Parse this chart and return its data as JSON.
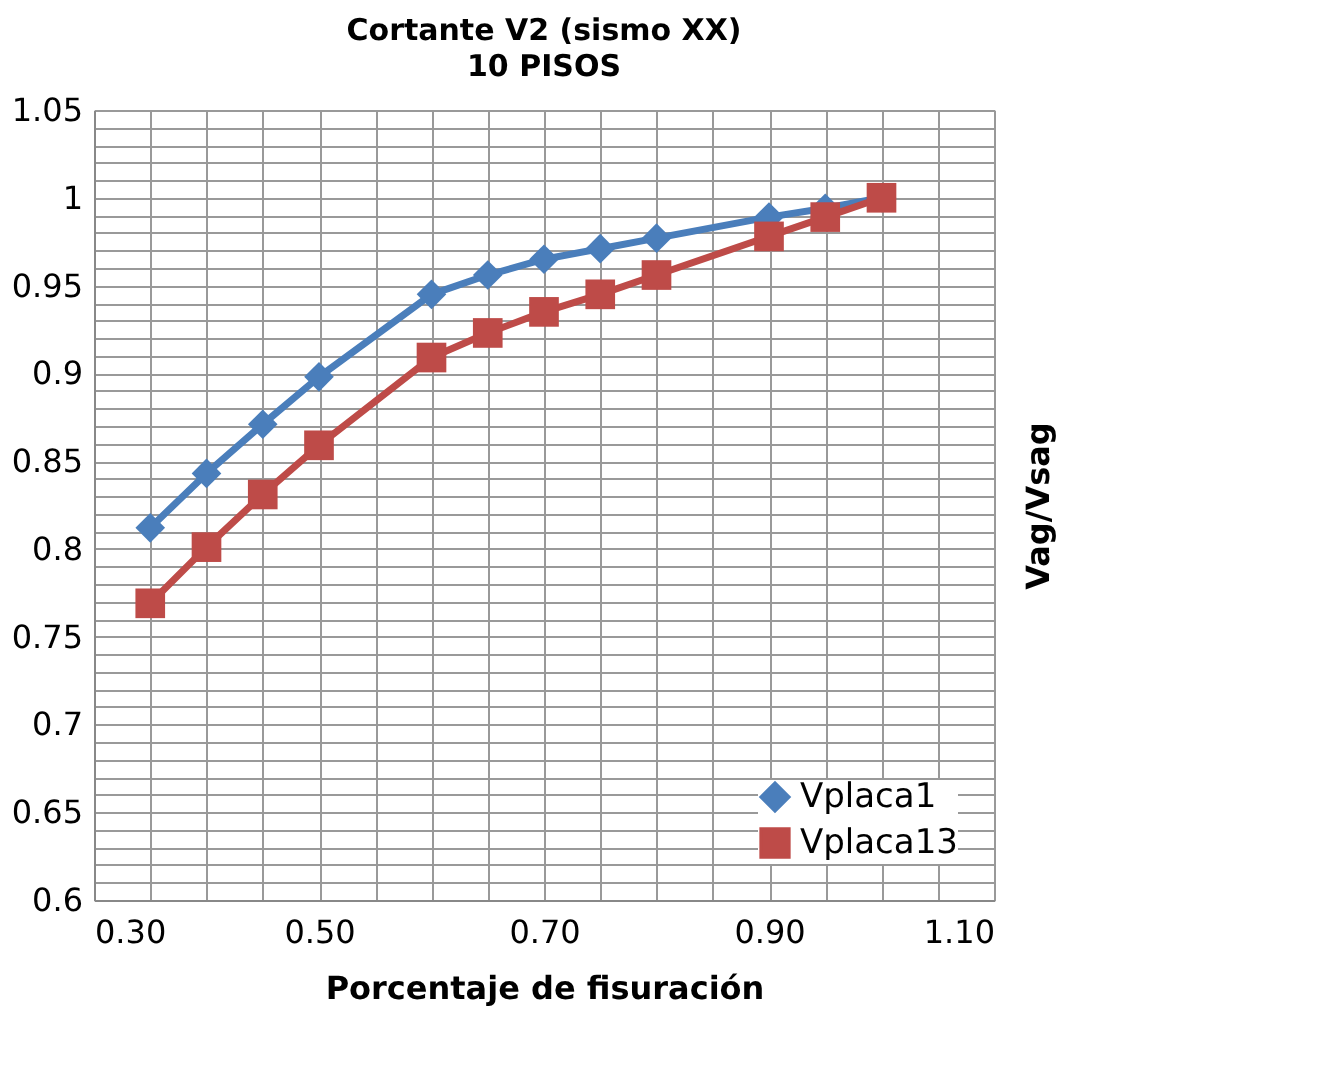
{
  "chart_data": {
    "type": "line",
    "title": "Cortante V2 (sismo XX)",
    "subtitle": "10 PISOS",
    "xlabel": "Porcentaje de fisuración",
    "ylabel": "Vag/Vsag",
    "x": [
      0.35,
      0.4,
      0.45,
      0.5,
      0.6,
      0.65,
      0.7,
      0.75,
      0.8,
      0.9,
      0.95,
      1.0
    ],
    "series": [
      {
        "name": "Vplaca1",
        "color": "#4a7ebb",
        "marker": "diamond",
        "values": [
          0.812,
          0.843,
          0.871,
          0.898,
          0.945,
          0.956,
          0.965,
          0.971,
          0.977,
          0.989,
          0.994,
          1.0
        ]
      },
      {
        "name": "Vplaca13",
        "color": "#be4b48",
        "marker": "square",
        "values": [
          0.769,
          0.801,
          0.831,
          0.859,
          0.909,
          0.923,
          0.935,
          0.945,
          0.956,
          0.978,
          0.989,
          1.0
        ]
      }
    ],
    "xlim": [
      0.3,
      1.1
    ],
    "xticks": [
      {
        "value": 0.3,
        "label": "0.30"
      },
      {
        "value": 0.35,
        "label": null
      },
      {
        "value": 0.4,
        "label": null
      },
      {
        "value": 0.45,
        "label": null
      },
      {
        "value": 0.5,
        "label": "0.50"
      },
      {
        "value": 0.55,
        "label": null
      },
      {
        "value": 0.6,
        "label": null
      },
      {
        "value": 0.65,
        "label": null
      },
      {
        "value": 0.7,
        "label": "0.70"
      },
      {
        "value": 0.75,
        "label": null
      },
      {
        "value": 0.8,
        "label": null
      },
      {
        "value": 0.85,
        "label": null
      },
      {
        "value": 0.9,
        "label": "0.90"
      },
      {
        "value": 0.95,
        "label": null
      },
      {
        "value": 1.0,
        "label": null
      },
      {
        "value": 1.05,
        "label": null
      },
      {
        "value": 1.1,
        "label": "1.10"
      }
    ],
    "ylim": [
      0.6,
      1.05
    ],
    "yticks": [
      0.6,
      {
        "value": 0.61,
        "label": null
      },
      {
        "value": 0.62,
        "label": null
      },
      {
        "value": 0.63,
        "label": null
      },
      {
        "value": 0.64,
        "label": null
      },
      0.65,
      {
        "value": 0.66,
        "label": null
      },
      {
        "value": 0.67,
        "label": null
      },
      {
        "value": 0.68,
        "label": null
      },
      {
        "value": 0.69,
        "label": null
      },
      0.7,
      {
        "value": 0.71,
        "label": null
      },
      {
        "value": 0.72,
        "label": null
      },
      {
        "value": 0.73,
        "label": null
      },
      {
        "value": 0.74,
        "label": null
      },
      0.75,
      {
        "value": 0.76,
        "label": null
      },
      {
        "value": 0.77,
        "label": null
      },
      {
        "value": 0.78,
        "label": null
      },
      {
        "value": 0.79,
        "label": null
      },
      0.8,
      {
        "value": 0.81,
        "label": null
      },
      {
        "value": 0.82,
        "label": null
      },
      {
        "value": 0.83,
        "label": null
      },
      {
        "value": 0.84,
        "label": null
      },
      0.85,
      {
        "value": 0.86,
        "label": null
      },
      {
        "value": 0.87,
        "label": null
      },
      {
        "value": 0.88,
        "label": null
      },
      {
        "value": 0.89,
        "label": null
      },
      0.9,
      {
        "value": 0.91,
        "label": null
      },
      {
        "value": 0.92,
        "label": null
      },
      {
        "value": 0.93,
        "label": null
      },
      {
        "value": 0.94,
        "label": null
      },
      0.95,
      {
        "value": 0.96,
        "label": null
      },
      {
        "value": 0.97,
        "label": null
      },
      {
        "value": 0.98,
        "label": null
      },
      {
        "value": 0.99,
        "label": null
      },
      1,
      {
        "value": 1.01,
        "label": null
      },
      {
        "value": 1.02,
        "label": null
      },
      {
        "value": 1.03,
        "label": null
      },
      {
        "value": 1.04,
        "label": null
      },
      1.05
    ],
    "grid": true,
    "legend": "bottom right",
    "line_style": "solid"
  }
}
